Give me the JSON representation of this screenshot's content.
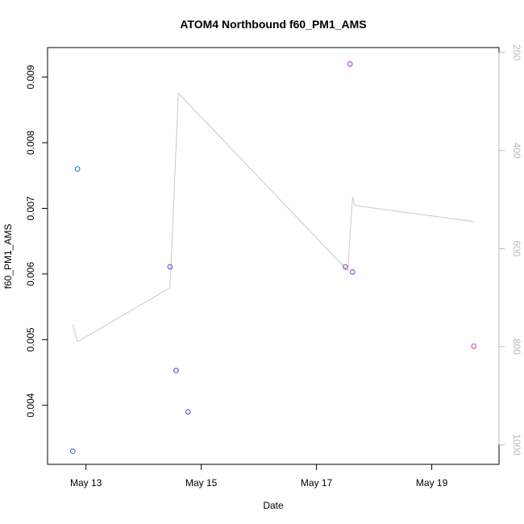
{
  "chart_data": {
    "type": "scatter",
    "title": "ATOM4 Northbound f60_PM1_AMS",
    "xlabel": "Date",
    "ylabel": "f60_PM1_AMS",
    "xlim": [
      "2016-05-12 08:00",
      "2016-05-20 04:00"
    ],
    "ylim": [
      0.0031,
      0.00945
    ],
    "x_ticks": [
      {
        "label": "May 13",
        "value": "2016-05-13 00:00"
      },
      {
        "label": "May 15",
        "value": "2016-05-15 00:00"
      },
      {
        "label": "May 17",
        "value": "2016-05-17 00:00"
      },
      {
        "label": "May 19",
        "value": "2016-05-19 00:00"
      }
    ],
    "y_ticks": [
      {
        "label": "0.004",
        "value": 0.004
      },
      {
        "label": "0.005",
        "value": 0.005
      },
      {
        "label": "0.006",
        "value": 0.006
      },
      {
        "label": "0.007",
        "value": 0.007
      },
      {
        "label": "0.008",
        "value": 0.008
      },
      {
        "label": "0.009",
        "value": 0.009
      }
    ],
    "y2lim": [
      1040,
      190
    ],
    "y2_reversed": true,
    "y2_ticks": [
      {
        "label": "200",
        "value": 200
      },
      {
        "label": "400",
        "value": 400
      },
      {
        "label": "600",
        "value": 600
      },
      {
        "label": "800",
        "value": 800
      },
      {
        "label": "1000",
        "value": 1000
      }
    ],
    "grid": false,
    "points": [
      {
        "x": "2016-05-12 18:30",
        "y": 0.0033,
        "color": "#1f6fd6"
      },
      {
        "x": "2016-05-12 20:30",
        "y": 0.0076,
        "color": "#1f6fd6"
      },
      {
        "x": "2016-05-14 11:00",
        "y": 0.00611,
        "color": "#4a3fe0"
      },
      {
        "x": "2016-05-14 13:30",
        "y": 0.00453,
        "color": "#3a3ad8"
      },
      {
        "x": "2016-05-14 18:30",
        "y": 0.0039,
        "color": "#3a3ad8"
      },
      {
        "x": "2016-05-17 12:00",
        "y": 0.00611,
        "color": "#8a33d4"
      },
      {
        "x": "2016-05-17 14:00",
        "y": 0.0092,
        "color": "#9a2fd0"
      },
      {
        "x": "2016-05-17 15:00",
        "y": 0.00603,
        "color": "#8a33d4"
      },
      {
        "x": "2016-05-19 17:30",
        "y": 0.0049,
        "color": "#d92fb5"
      }
    ],
    "line_series": {
      "axis": "right",
      "color": "#c8c8c8",
      "points": [
        {
          "x": "2016-05-12 18:30",
          "y": 755
        },
        {
          "x": "2016-05-12 20:30",
          "y": 790
        },
        {
          "x": "2016-05-14 11:00",
          "y": 680
        },
        {
          "x": "2016-05-14 14:30",
          "y": 283
        },
        {
          "x": "2016-05-17 13:00",
          "y": 645
        },
        {
          "x": "2016-05-17 15:00",
          "y": 495
        },
        {
          "x": "2016-05-17 16:00",
          "y": 512
        },
        {
          "x": "2016-05-19 17:30",
          "y": 545
        }
      ]
    }
  }
}
